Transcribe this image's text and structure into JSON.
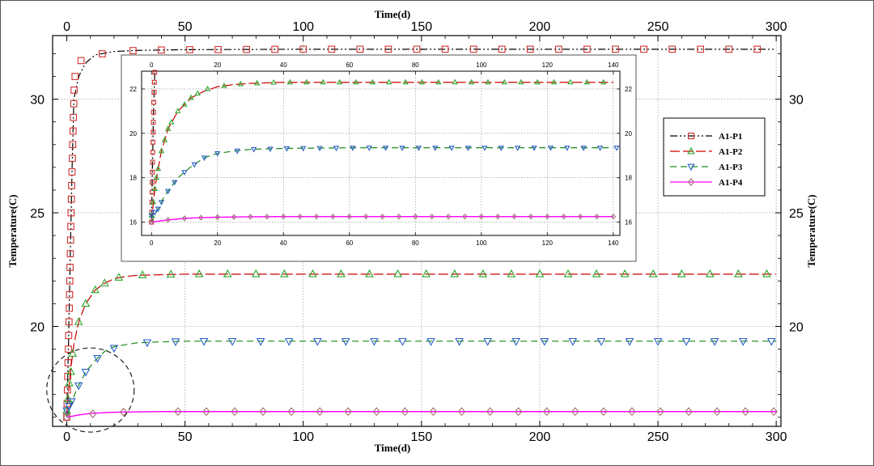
{
  "chart_data": [
    {
      "type": "line",
      "title": "",
      "xlabel": "Time(d)",
      "ylabel": "Temperature(C)",
      "xlim": [
        -6,
        302
      ],
      "ylim": [
        15.6,
        32.8
      ],
      "xticks": [
        0,
        50,
        100,
        150,
        200,
        250,
        300
      ],
      "yticks": [
        20,
        25,
        30
      ],
      "grid": true,
      "legend_placement": "right",
      "series": [
        {
          "name": "A1-P1",
          "color": "#000000",
          "marker": "square",
          "marker_color": "#d03030",
          "dash": "dash-dot-dot",
          "x": [
            0,
            1,
            2,
            3,
            5,
            8,
            12,
            20,
            30,
            50,
            100,
            150,
            200,
            250,
            300
          ],
          "y": [
            16.0,
            20.5,
            26.0,
            30.0,
            31.0,
            31.6,
            31.95,
            32.1,
            32.15,
            32.18,
            32.2,
            32.2,
            32.2,
            32.2,
            32.2
          ]
        },
        {
          "name": "A1-P2",
          "color": "#cc0000",
          "marker": "triangle-up",
          "marker_color": "#2ea82e",
          "dash": "long-dash",
          "x": [
            0,
            1,
            2,
            3,
            5,
            8,
            12,
            16,
            20,
            25,
            30,
            50,
            100,
            150,
            200,
            250,
            300
          ],
          "y": [
            16.0,
            17.5,
            18.4,
            19.2,
            20.2,
            21.0,
            21.6,
            21.9,
            22.1,
            22.2,
            22.25,
            22.3,
            22.3,
            22.3,
            22.3,
            22.3,
            22.3
          ]
        },
        {
          "name": "A1-P3",
          "color": "#1a8a1a",
          "marker": "triangle-down",
          "marker_color": "#2a5fc8",
          "dash": "dash",
          "x": [
            0,
            2,
            4,
            6,
            8,
            12,
            16,
            20,
            25,
            30,
            40,
            50,
            100,
            150,
            200,
            250,
            300
          ],
          "y": [
            16.0,
            16.6,
            17.2,
            17.6,
            18.0,
            18.5,
            18.9,
            19.1,
            19.2,
            19.28,
            19.32,
            19.35,
            19.35,
            19.35,
            19.35,
            19.35,
            19.35
          ]
        },
        {
          "name": "A1-P4",
          "color": "#ff00ff",
          "marker": "diamond",
          "marker_color": "#a07070",
          "dash": "solid",
          "x": [
            0,
            5,
            10,
            15,
            20,
            25,
            30,
            40,
            50,
            100,
            150,
            200,
            250,
            300
          ],
          "y": [
            16.0,
            16.1,
            16.17,
            16.2,
            16.22,
            16.23,
            16.24,
            16.25,
            16.25,
            16.25,
            16.25,
            16.25,
            16.25,
            16.25
          ]
        }
      ]
    },
    {
      "type": "line",
      "title": "",
      "xlabel": "",
      "ylabel": "",
      "xlim": [
        -3,
        142
      ],
      "ylim": [
        15.4,
        22.8
      ],
      "xticks": [
        0,
        20,
        40,
        60,
        80,
        100,
        120,
        140
      ],
      "yticks": [
        16,
        18,
        20,
        22
      ],
      "grid": true,
      "series": [
        {
          "name": "A1-P1",
          "x": [
            0,
            0.3,
            0.6,
            1.0
          ],
          "y": [
            16.0,
            18.5,
            21.0,
            22.8
          ]
        },
        {
          "name": "A1-P2",
          "x": [
            0,
            1,
            2,
            3,
            5,
            8,
            12,
            16,
            20,
            25,
            30,
            40,
            60,
            80,
            100,
            120,
            140
          ],
          "y": [
            16.0,
            17.5,
            18.4,
            19.2,
            20.2,
            21.0,
            21.6,
            21.9,
            22.1,
            22.2,
            22.25,
            22.3,
            22.3,
            22.3,
            22.3,
            22.3,
            22.3
          ]
        },
        {
          "name": "A1-P3",
          "x": [
            0,
            2,
            4,
            6,
            8,
            12,
            16,
            20,
            25,
            30,
            40,
            60,
            80,
            100,
            120,
            140
          ],
          "y": [
            16.0,
            16.6,
            17.2,
            17.6,
            18.0,
            18.5,
            18.9,
            19.1,
            19.2,
            19.28,
            19.32,
            19.35,
            19.35,
            19.35,
            19.35,
            19.35
          ]
        },
        {
          "name": "A1-P4",
          "x": [
            0,
            5,
            10,
            15,
            20,
            25,
            30,
            40,
            60,
            80,
            100,
            120,
            140
          ],
          "y": [
            16.0,
            16.1,
            16.17,
            16.2,
            16.22,
            16.23,
            16.24,
            16.25,
            16.25,
            16.25,
            16.25,
            16.25,
            16.25
          ]
        }
      ]
    }
  ],
  "legend": {
    "items": [
      "A1-P1",
      "A1-P2",
      "A1-P3",
      "A1-P4"
    ]
  },
  "annotation": {
    "shape": "dashed-circle"
  }
}
